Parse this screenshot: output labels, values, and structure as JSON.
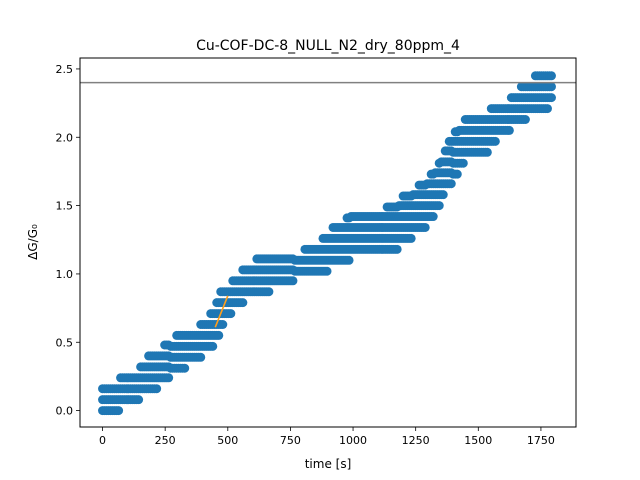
{
  "chart_data": {
    "type": "scatter",
    "title": "Cu-COF-DC-8_NULL_N2_dry_80ppm_4",
    "xlabel": "time [s]",
    "ylabel": "ΔG/G₀",
    "xlim": [
      -90,
      1890
    ],
    "ylim": [
      -0.12,
      2.58
    ],
    "xticks": [
      0,
      250,
      500,
      750,
      1000,
      1250,
      1500,
      1750
    ],
    "yticks": [
      0.0,
      0.5,
      1.0,
      1.5,
      2.0,
      2.5
    ],
    "xtick_labels": [
      "0",
      "250",
      "500",
      "750",
      "1000",
      "1250",
      "1500",
      "1750"
    ],
    "ytick_labels": [
      "0.0",
      "0.5",
      "1.0",
      "1.5",
      "2.0",
      "2.5"
    ],
    "grid": false,
    "colors": {
      "points": "#1f77b4",
      "fit_line": "#ff9f1c",
      "hline": "#808080"
    },
    "hline": {
      "y": 2.4
    },
    "fit_line": {
      "x": [
        450,
        500
      ],
      "y": [
        0.61,
        0.84
      ]
    },
    "series": [
      {
        "marker": "circle",
        "x": [
          0,
          8,
          16,
          24,
          32,
          40,
          48,
          56,
          64,
          72,
          80,
          88,
          96,
          104,
          112,
          120,
          128,
          136,
          144,
          152,
          160,
          168,
          176,
          184,
          192,
          200,
          208,
          216,
          224,
          232,
          240,
          248,
          256,
          264,
          272,
          280,
          288,
          296,
          304,
          312,
          320,
          328,
          336,
          344,
          352,
          360,
          368,
          376,
          384,
          392,
          400,
          408,
          416,
          424,
          432,
          440,
          448,
          456,
          464,
          472,
          480,
          488,
          496,
          504,
          512,
          520,
          528,
          536,
          544,
          552,
          560,
          568,
          576,
          584,
          592,
          600,
          608,
          616,
          624,
          632,
          640,
          648,
          656,
          664,
          672,
          680,
          688,
          696,
          704,
          712,
          720,
          728,
          736,
          744,
          752,
          760,
          768,
          776,
          784,
          792,
          800,
          808,
          816,
          824,
          832,
          840,
          848,
          856,
          864,
          872,
          880,
          888,
          896,
          904,
          912,
          920,
          928,
          936,
          944,
          952,
          960,
          968,
          976,
          984,
          992,
          1000,
          1008,
          1016,
          1024,
          1032,
          1040,
          1048,
          1056,
          1064,
          1072,
          1080,
          1088,
          1096,
          1104,
          1112,
          1120,
          1128,
          1136,
          1144,
          1152,
          1160,
          1168,
          1176,
          1184,
          1192,
          1200,
          1208,
          1216,
          1224,
          1232,
          1240,
          1248,
          1256,
          1264,
          1272,
          1280,
          1288,
          1296,
          1304,
          1312,
          1320,
          1328,
          1336,
          1344,
          1352,
          1360,
          1368,
          1376,
          1384,
          1392,
          1400,
          1408,
          1416,
          1424,
          1432,
          1440,
          1448,
          1456,
          1464,
          1472,
          1480,
          1488,
          1496,
          1504,
          1512,
          1520,
          1528,
          1536,
          1544,
          1552,
          1560,
          1568,
          1576,
          1584,
          1592,
          1600,
          1608,
          1616,
          1624,
          1632,
          1640,
          1648,
          1656,
          1664,
          1672,
          1680,
          1688,
          1696,
          1704,
          1712,
          1720,
          1728,
          1736,
          1744,
          1752,
          1760,
          1768,
          1776,
          1784,
          1792
        ],
        "y_min": [
          0.0,
          0.0,
          0.0,
          0.0,
          0.0,
          0.0,
          0.0,
          0.0,
          0.0,
          0.08,
          0.08,
          0.08,
          0.08,
          0.08,
          0.08,
          0.08,
          0.08,
          0.08,
          0.08,
          0.16,
          0.16,
          0.16,
          0.16,
          0.16,
          0.16,
          0.16,
          0.16,
          0.16,
          0.24,
          0.24,
          0.24,
          0.24,
          0.24,
          0.24,
          0.31,
          0.31,
          0.31,
          0.31,
          0.31,
          0.31,
          0.31,
          0.31,
          0.39,
          0.39,
          0.39,
          0.39,
          0.39,
          0.39,
          0.39,
          0.39,
          0.47,
          0.47,
          0.47,
          0.47,
          0.47,
          0.47,
          0.55,
          0.55,
          0.55,
          0.63,
          0.63,
          0.71,
          0.71,
          0.71,
          0.71,
          0.79,
          0.79,
          0.79,
          0.79,
          0.79,
          0.79,
          0.87,
          0.87,
          0.87,
          0.87,
          0.87,
          0.87,
          0.87,
          0.87,
          0.87,
          0.87,
          0.87,
          0.87,
          0.87,
          0.95,
          0.95,
          0.95,
          0.95,
          0.95,
          0.95,
          0.95,
          0.95,
          0.95,
          0.95,
          0.95,
          0.95,
          1.02,
          1.02,
          1.02,
          1.02,
          1.02,
          1.02,
          1.02,
          1.02,
          1.02,
          1.02,
          1.02,
          1.02,
          1.02,
          1.02,
          1.02,
          1.02,
          1.02,
          1.1,
          1.1,
          1.1,
          1.1,
          1.1,
          1.1,
          1.1,
          1.1,
          1.1,
          1.1,
          1.1,
          1.18,
          1.18,
          1.18,
          1.18,
          1.18,
          1.18,
          1.18,
          1.18,
          1.18,
          1.18,
          1.18,
          1.18,
          1.18,
          1.18,
          1.18,
          1.18,
          1.18,
          1.18,
          1.18,
          1.18,
          1.18,
          1.18,
          1.18,
          1.18,
          1.26,
          1.26,
          1.26,
          1.26,
          1.26,
          1.26,
          1.26,
          1.34,
          1.34,
          1.34,
          1.34,
          1.34,
          1.34,
          1.34,
          1.42,
          1.42,
          1.42,
          1.42,
          1.5,
          1.5,
          1.5,
          1.58,
          1.58,
          1.66,
          1.66,
          1.66,
          1.66,
          1.73,
          1.73,
          1.73,
          1.81,
          1.81,
          1.81,
          1.89,
          1.89,
          1.89,
          1.89,
          1.89,
          1.89,
          1.89,
          1.89,
          1.89,
          1.89,
          1.89,
          1.89,
          1.97,
          1.97,
          1.97,
          1.97,
          2.05,
          2.05,
          2.05,
          2.05,
          2.05,
          2.05,
          2.05,
          2.13,
          2.13,
          2.13,
          2.13,
          2.13,
          2.13,
          2.13,
          2.13,
          2.21,
          2.21,
          2.21,
          2.21,
          2.21,
          2.21,
          2.21,
          2.21,
          2.21,
          2.21,
          2.21,
          2.29,
          2.29,
          2.29,
          2.29,
          2.29,
          2.29
        ],
        "y_max": [
          0.16,
          0.16,
          0.16,
          0.16,
          0.16,
          0.16,
          0.16,
          0.16,
          0.16,
          0.24,
          0.24,
          0.24,
          0.24,
          0.24,
          0.24,
          0.24,
          0.24,
          0.24,
          0.24,
          0.31,
          0.31,
          0.31,
          0.31,
          0.39,
          0.39,
          0.39,
          0.39,
          0.39,
          0.39,
          0.39,
          0.39,
          0.47,
          0.47,
          0.47,
          0.47,
          0.47,
          0.47,
          0.55,
          0.55,
          0.55,
          0.55,
          0.55,
          0.55,
          0.55,
          0.55,
          0.55,
          0.55,
          0.55,
          0.55,
          0.63,
          0.63,
          0.63,
          0.63,
          0.63,
          0.71,
          0.71,
          0.71,
          0.79,
          0.79,
          0.87,
          0.87,
          0.87,
          0.87,
          0.87,
          0.87,
          0.95,
          0.95,
          0.95,
          0.95,
          0.95,
          1.02,
          1.02,
          1.02,
          1.02,
          1.02,
          1.02,
          1.02,
          1.1,
          1.1,
          1.1,
          1.1,
          1.1,
          1.1,
          1.1,
          1.1,
          1.1,
          1.1,
          1.1,
          1.1,
          1.1,
          1.1,
          1.1,
          1.1,
          1.1,
          1.1,
          1.1,
          1.1,
          1.1,
          1.1,
          1.1,
          1.1,
          1.18,
          1.18,
          1.18,
          1.18,
          1.18,
          1.18,
          1.18,
          1.18,
          1.18,
          1.26,
          1.26,
          1.26,
          1.26,
          1.26,
          1.34,
          1.34,
          1.34,
          1.34,
          1.34,
          1.34,
          1.34,
          1.42,
          1.42,
          1.42,
          1.42,
          1.42,
          1.42,
          1.42,
          1.42,
          1.42,
          1.42,
          1.42,
          1.42,
          1.42,
          1.42,
          1.42,
          1.42,
          1.42,
          1.42,
          1.42,
          1.42,
          1.5,
          1.5,
          1.5,
          1.5,
          1.5,
          1.5,
          1.5,
          1.5,
          1.58,
          1.58,
          1.58,
          1.58,
          1.58,
          1.58,
          1.58,
          1.58,
          1.66,
          1.66,
          1.66,
          1.66,
          1.66,
          1.66,
          1.73,
          1.73,
          1.73,
          1.73,
          1.81,
          1.81,
          1.81,
          1.89,
          1.89,
          1.97,
          1.97,
          1.97,
          2.05,
          2.05,
          2.05,
          2.05,
          2.05,
          2.13,
          2.13,
          2.13,
          2.13,
          2.13,
          2.13,
          2.13,
          2.13,
          2.13,
          2.13,
          2.13,
          2.13,
          2.13,
          2.21,
          2.21,
          2.21,
          2.21,
          2.21,
          2.21,
          2.21,
          2.21,
          2.21,
          2.21,
          2.29,
          2.29,
          2.29,
          2.29,
          2.29,
          2.37,
          2.37,
          2.37,
          2.37,
          2.37,
          2.37,
          2.37,
          2.45,
          2.45,
          2.45,
          2.45,
          2.45,
          2.45,
          2.45,
          2.45,
          2.45,
          2.45,
          2.45
        ]
      }
    ]
  }
}
